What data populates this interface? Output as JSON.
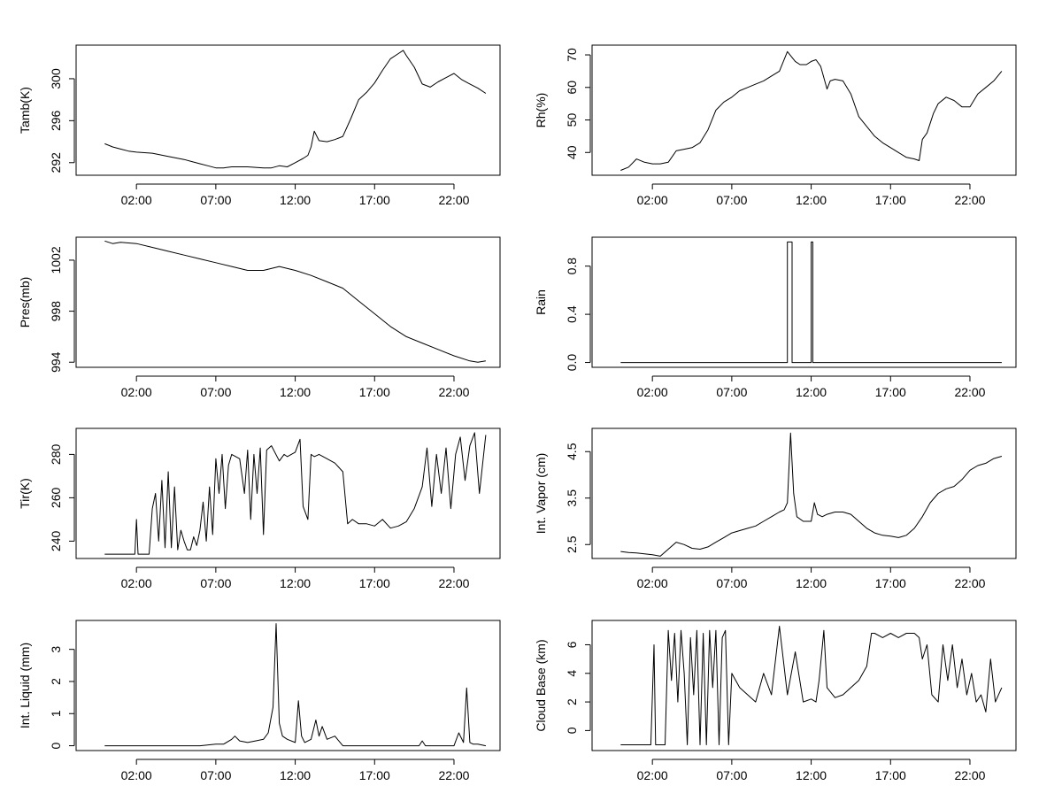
{
  "chart_data": [
    {
      "type": "line",
      "ylabel": "Tamb(K)",
      "x_ticks": [
        "02:00",
        "07:00",
        "12:00",
        "17:00",
        "22:00"
      ],
      "x_tick_hours": [
        2,
        7,
        12,
        17,
        22
      ],
      "xlim": [
        -1.8,
        24.9
      ],
      "ylim": [
        290.8,
        303.2
      ],
      "y_ticks": [
        292,
        296,
        300
      ],
      "series": [
        {
          "x": [
            0,
            0.5,
            1,
            1.5,
            2,
            3,
            4,
            5,
            5.5,
            6,
            6.5,
            7,
            7.5,
            8,
            9,
            10,
            10.5,
            11,
            11.5,
            12,
            12.5,
            12.8,
            13,
            13.2,
            13.5,
            14,
            14.5,
            15,
            15.5,
            16,
            16.5,
            17,
            17.5,
            18,
            18.5,
            18.8,
            19,
            19.5,
            20,
            20.5,
            21,
            21.5,
            22,
            22.5,
            23,
            23.5,
            24
          ],
          "y": [
            293.8,
            293.5,
            293.3,
            293.1,
            293.0,
            292.9,
            292.6,
            292.3,
            292.1,
            291.9,
            291.7,
            291.5,
            291.5,
            291.6,
            291.6,
            291.5,
            291.5,
            291.7,
            291.6,
            292.0,
            292.4,
            292.7,
            293.5,
            295.0,
            294.1,
            294.0,
            294.2,
            294.5,
            296.2,
            298.0,
            298.7,
            299.6,
            300.8,
            301.9,
            302.4,
            302.7,
            302.2,
            301.1,
            299.5,
            299.2,
            299.7,
            300.1,
            300.5,
            299.9,
            299.5,
            299.1,
            298.6
          ]
        }
      ]
    },
    {
      "type": "line",
      "ylabel": "Rh(%)",
      "x_ticks": [
        "02:00",
        "07:00",
        "12:00",
        "17:00",
        "22:00"
      ],
      "x_tick_hours": [
        2,
        7,
        12,
        17,
        22
      ],
      "xlim": [
        -1.8,
        24.9
      ],
      "ylim": [
        33,
        73
      ],
      "y_ticks": [
        40,
        50,
        60,
        70
      ],
      "series": [
        {
          "x": [
            0,
            0.5,
            1,
            1.5,
            2,
            2.5,
            3,
            3.5,
            4,
            4.5,
            5,
            5.5,
            6,
            6.5,
            7,
            7.5,
            8,
            8.5,
            9,
            9.5,
            10,
            10.5,
            11,
            11.3,
            11.7,
            12,
            12.3,
            12.6,
            13,
            13.2,
            13.5,
            14,
            14.5,
            15,
            15.5,
            16,
            16.5,
            17,
            17.5,
            18,
            18.5,
            18.8,
            19,
            19.3,
            19.7,
            20,
            20.5,
            21,
            21.5,
            22,
            22.5,
            23,
            23.5,
            24
          ],
          "y": [
            34.5,
            35.5,
            38,
            37,
            36.5,
            36.5,
            37,
            40.5,
            41,
            41.5,
            43,
            47,
            53,
            55.5,
            57,
            59,
            60,
            61,
            62,
            63.5,
            65,
            71,
            68,
            67,
            67,
            68,
            68.5,
            66.5,
            59.5,
            62,
            62.5,
            62,
            58,
            51,
            48,
            45,
            43,
            41.5,
            40,
            38.5,
            38,
            37.5,
            44,
            46,
            52,
            55,
            57,
            56,
            54,
            54,
            58,
            60,
            62,
            65
          ]
        }
      ]
    },
    {
      "type": "line",
      "ylabel": "Pres(mb)",
      "x_ticks": [
        "02:00",
        "07:00",
        "12:00",
        "17:00",
        "22:00"
      ],
      "x_tick_hours": [
        2,
        7,
        12,
        17,
        22
      ],
      "xlim": [
        -1.8,
        24.9
      ],
      "ylim": [
        993.6,
        1003.8
      ],
      "y_ticks": [
        994,
        998,
        1002
      ],
      "series": [
        {
          "x": [
            0,
            0.5,
            1,
            2,
            3,
            4,
            5,
            6,
            7,
            8,
            9,
            10,
            11,
            12,
            13,
            14,
            15,
            16,
            17,
            18,
            19,
            20,
            21,
            22,
            23,
            23.5,
            24
          ],
          "y": [
            1003.5,
            1003.3,
            1003.4,
            1003.3,
            1003.0,
            1002.7,
            1002.4,
            1002.1,
            1001.8,
            1001.5,
            1001.2,
            1001.2,
            1001.5,
            1001.2,
            1000.8,
            1000.3,
            999.8,
            998.8,
            997.8,
            996.8,
            996.0,
            995.5,
            995.0,
            994.5,
            994.1,
            994.0,
            994.1
          ]
        }
      ]
    },
    {
      "type": "line",
      "ylabel": "Rain",
      "x_ticks": [
        "02:00",
        "07:00",
        "12:00",
        "17:00",
        "22:00"
      ],
      "x_tick_hours": [
        2,
        7,
        12,
        17,
        22
      ],
      "xlim": [
        -1.8,
        24.9
      ],
      "ylim": [
        -0.04,
        1.04
      ],
      "y_ticks": [
        0.0,
        0.4,
        0.8
      ],
      "series": [
        {
          "x": [
            0,
            10.5,
            10.5,
            10.8,
            10.8,
            12.0,
            12.0,
            12.1,
            12.1,
            24
          ],
          "y": [
            0,
            0,
            1,
            1,
            0,
            0,
            1,
            1,
            0,
            0
          ]
        }
      ]
    },
    {
      "type": "line",
      "ylabel": "Tir(K)",
      "x_ticks": [
        "02:00",
        "07:00",
        "12:00",
        "17:00",
        "22:00"
      ],
      "x_tick_hours": [
        2,
        7,
        12,
        17,
        22
      ],
      "xlim": [
        -1.8,
        24.9
      ],
      "ylim": [
        232,
        292
      ],
      "y_ticks": [
        240,
        260,
        280
      ],
      "series": [
        {
          "x": [
            0,
            1,
            1.9,
            2.0,
            2.1,
            2.8,
            3.0,
            3.2,
            3.4,
            3.6,
            3.8,
            4.0,
            4.2,
            4.4,
            4.6,
            4.8,
            5.0,
            5.2,
            5.4,
            5.6,
            5.8,
            6.0,
            6.2,
            6.4,
            6.6,
            6.8,
            7.0,
            7.2,
            7.4,
            7.6,
            7.8,
            8.0,
            8.5,
            8.8,
            9.0,
            9.2,
            9.4,
            9.6,
            9.8,
            10.0,
            10.2,
            10.5,
            11.0,
            11.3,
            11.5,
            12.0,
            12.3,
            12.5,
            12.8,
            13.0,
            13.2,
            13.5,
            14.0,
            14.5,
            15.0,
            15.3,
            15.6,
            16.0,
            16.5,
            17.0,
            17.5,
            18.0,
            18.5,
            19.0,
            19.5,
            20.0,
            20.3,
            20.6,
            20.9,
            21.2,
            21.5,
            21.8,
            22.1,
            22.4,
            22.7,
            23.0,
            23.3,
            23.6,
            24.0
          ],
          "y": [
            234,
            234,
            234,
            250,
            234,
            234,
            255,
            262,
            240,
            268,
            237,
            272,
            237,
            265,
            236,
            245,
            240,
            236,
            236,
            242,
            238,
            245,
            258,
            240,
            265,
            243,
            278,
            262,
            280,
            255,
            275,
            280,
            278,
            262,
            282,
            250,
            280,
            262,
            283,
            243,
            282,
            284,
            277,
            280,
            279,
            281,
            287,
            256,
            250,
            280,
            279,
            280,
            278,
            276,
            272,
            248,
            250,
            248,
            248,
            247,
            250,
            246,
            247,
            249,
            255,
            265,
            283,
            256,
            280,
            262,
            283,
            255,
            280,
            288,
            268,
            284,
            290,
            262,
            289
          ]
        }
      ]
    },
    {
      "type": "line",
      "ylabel": "Int. Vapor (cm)",
      "x_ticks": [
        "02:00",
        "07:00",
        "12:00",
        "17:00",
        "22:00"
      ],
      "x_tick_hours": [
        2,
        7,
        12,
        17,
        22
      ],
      "xlim": [
        -1.8,
        24.9
      ],
      "ylim": [
        2.2,
        5.0
      ],
      "y_ticks": [
        2.5,
        3.5,
        4.5
      ],
      "series": [
        {
          "x": [
            0,
            0.5,
            1,
            1.5,
            2,
            2.5,
            3,
            3.5,
            4,
            4.5,
            5,
            5.5,
            6,
            6.5,
            7,
            7.5,
            8,
            8.5,
            9,
            9.5,
            10,
            10.3,
            10.5,
            10.7,
            10.9,
            11.1,
            11.5,
            12,
            12.2,
            12.4,
            12.7,
            13,
            13.5,
            14,
            14.5,
            15,
            15.5,
            16,
            16.5,
            17,
            17.5,
            18,
            18.5,
            19,
            19.5,
            20,
            20.5,
            21,
            21.5,
            22,
            22.5,
            23,
            23.5,
            24
          ],
          "y": [
            2.35,
            2.33,
            2.32,
            2.3,
            2.28,
            2.25,
            2.4,
            2.55,
            2.5,
            2.42,
            2.4,
            2.45,
            2.55,
            2.65,
            2.75,
            2.8,
            2.85,
            2.9,
            3.0,
            3.1,
            3.2,
            3.25,
            3.4,
            4.9,
            3.6,
            3.1,
            3.0,
            3.0,
            3.4,
            3.15,
            3.1,
            3.15,
            3.2,
            3.2,
            3.15,
            3.0,
            2.85,
            2.75,
            2.7,
            2.68,
            2.65,
            2.7,
            2.85,
            3.1,
            3.4,
            3.6,
            3.7,
            3.75,
            3.9,
            4.1,
            4.2,
            4.25,
            4.35,
            4.4
          ]
        }
      ]
    },
    {
      "type": "line",
      "ylabel": "Int. Liquid (mm)",
      "x_ticks": [
        "02:00",
        "07:00",
        "12:00",
        "17:00",
        "22:00"
      ],
      "x_tick_hours": [
        2,
        7,
        12,
        17,
        22
      ],
      "xlim": [
        -1.8,
        24.9
      ],
      "ylim": [
        -0.15,
        3.9
      ],
      "y_ticks": [
        0,
        1,
        2,
        3
      ],
      "series": [
        {
          "x": [
            0,
            6,
            7,
            7.5,
            8,
            8.2,
            8.5,
            9,
            9.5,
            10,
            10.3,
            10.6,
            10.8,
            11.0,
            11.2,
            11.5,
            12.0,
            12.2,
            12.4,
            12.6,
            13.0,
            13.3,
            13.5,
            13.7,
            14.0,
            14.5,
            15,
            19.8,
            20.0,
            20.2,
            22,
            22.3,
            22.6,
            22.8,
            23.0,
            23.2,
            23.5,
            24
          ],
          "y": [
            0,
            0,
            0.05,
            0.05,
            0.2,
            0.3,
            0.15,
            0.1,
            0.15,
            0.2,
            0.4,
            1.2,
            3.8,
            0.7,
            0.3,
            0.2,
            0.1,
            1.4,
            0.3,
            0.1,
            0.2,
            0.8,
            0.3,
            0.6,
            0.2,
            0.3,
            0,
            0,
            0.15,
            0,
            0,
            0.4,
            0.1,
            1.8,
            0.1,
            0.05,
            0.05,
            0
          ]
        }
      ]
    },
    {
      "type": "line",
      "ylabel": "Cloud Base (km)",
      "x_ticks": [
        "02:00",
        "07:00",
        "12:00",
        "17:00",
        "22:00"
      ],
      "x_tick_hours": [
        2,
        7,
        12,
        17,
        22
      ],
      "xlim": [
        -1.8,
        24.9
      ],
      "ylim": [
        -1.4,
        7.7
      ],
      "y_ticks": [
        0,
        2,
        4,
        6
      ],
      "series": [
        {
          "x": [
            0,
            1.9,
            2.0,
            2.1,
            2.2,
            2.8,
            3.0,
            3.2,
            3.4,
            3.6,
            3.8,
            4.0,
            4.2,
            4.4,
            4.6,
            4.8,
            5.0,
            5.2,
            5.4,
            5.6,
            5.8,
            6.0,
            6.2,
            6.4,
            6.6,
            6.8,
            7.0,
            7.5,
            8.0,
            8.5,
            9.0,
            9.5,
            10.0,
            10.5,
            11.0,
            11.5,
            12.0,
            12.3,
            12.5,
            12.8,
            13.0,
            13.5,
            14.0,
            14.5,
            15.0,
            15.5,
            15.8,
            16.0,
            16.5,
            17.0,
            17.5,
            18.0,
            18.5,
            18.8,
            19.0,
            19.3,
            19.6,
            20.0,
            20.3,
            20.6,
            20.9,
            21.2,
            21.5,
            21.8,
            22.1,
            22.4,
            22.7,
            23.0,
            23.3,
            23.6,
            24.0
          ],
          "y": [
            -1,
            -1,
            2.5,
            6.0,
            -1,
            -1,
            7.0,
            3.5,
            6.8,
            2.0,
            7.0,
            4.0,
            -1,
            6.5,
            2.5,
            7.0,
            -1,
            6.8,
            -1,
            7.0,
            3.0,
            7.0,
            -1,
            6.5,
            7.0,
            -1,
            4.0,
            3.0,
            2.5,
            2.0,
            4.0,
            2.5,
            7.3,
            2.5,
            5.5,
            2.0,
            2.2,
            2.0,
            3.5,
            7.0,
            3.0,
            2.3,
            2.5,
            3.0,
            3.5,
            4.5,
            6.8,
            6.8,
            6.5,
            6.8,
            6.5,
            6.8,
            6.8,
            6.5,
            5.0,
            6.0,
            2.5,
            2.0,
            6.0,
            3.5,
            6.0,
            3.0,
            5.0,
            2.5,
            4.0,
            2.0,
            2.5,
            1.3,
            5.0,
            2.0,
            3.0
          ]
        }
      ]
    }
  ]
}
